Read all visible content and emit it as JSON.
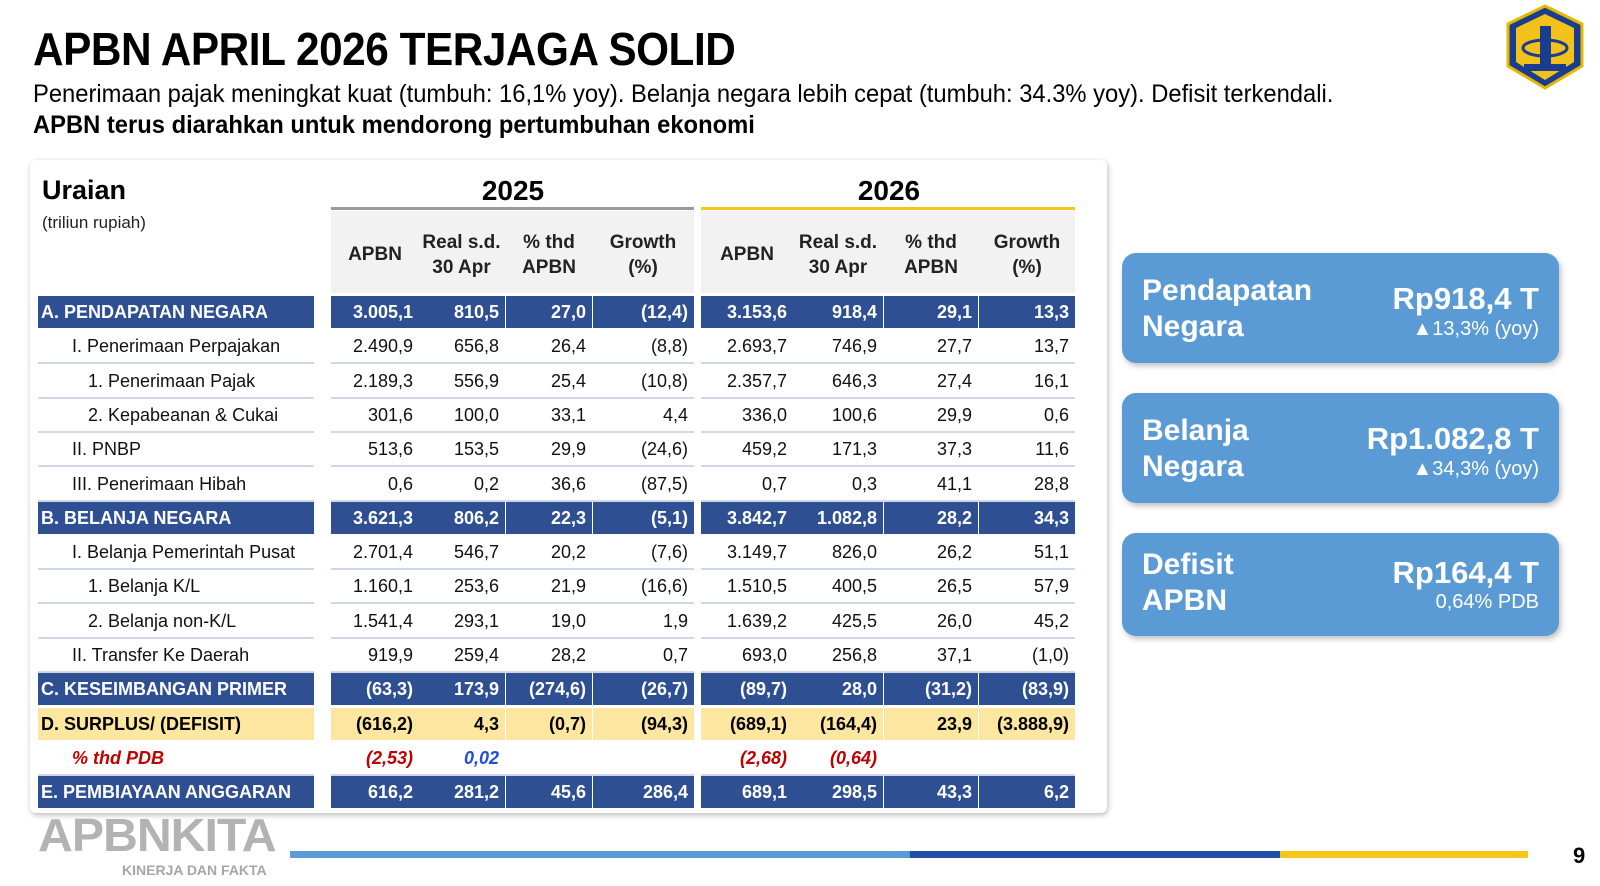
{
  "header": {
    "title": "APBN APRIL 2026 TERJAGA SOLID",
    "subtitle": "Penerimaan pajak meningkat kuat (tumbuh: 16,1% yoy). Belanja negara lebih cepat (tumbuh: 34.3% yoy). Defisit terkendali.",
    "subtitle_bold": "APBN terus diarahkan untuk mendorong pertumbuhan ekonomi"
  },
  "table": {
    "uraian_label": "Uraian",
    "unit_label": "(triliun rupiah)",
    "years": [
      "2025",
      "2026"
    ],
    "column_headers": [
      [
        "APBN"
      ],
      [
        "Real s.d.",
        "30 Apr"
      ],
      [
        "% thd",
        "APBN"
      ],
      [
        "Growth",
        "(%)"
      ],
      [
        "APBN"
      ],
      [
        "Real s.d.",
        "30 Apr"
      ],
      [
        "% thd",
        "APBN"
      ],
      [
        "Growth",
        "(%)"
      ]
    ],
    "rows": [
      {
        "label": "A. PENDAPATAN NEGARA",
        "style": "section",
        "indent": 0,
        "values": [
          "3.005,1",
          "810,5",
          "27,0",
          "(12,4)",
          "3.153,6",
          "918,4",
          "29,1",
          "13,3"
        ]
      },
      {
        "label": "I. Penerimaan Perpajakan",
        "style": "normal",
        "indent": 1,
        "values": [
          "2.490,9",
          "656,8",
          "26,4",
          "(8,8)",
          "2.693,7",
          "746,9",
          "27,7",
          "13,7"
        ]
      },
      {
        "label": "1.  Penerimaan Pajak",
        "style": "normal",
        "indent": 2,
        "values": [
          "2.189,3",
          "556,9",
          "25,4",
          "(10,8)",
          "2.357,7",
          "646,3",
          "27,4",
          "16,1"
        ]
      },
      {
        "label": "2.  Kepabeanan & Cukai",
        "style": "normal",
        "indent": 2,
        "values": [
          "301,6",
          "100,0",
          "33,1",
          "4,4",
          "336,0",
          "100,6",
          "29,9",
          "0,6"
        ]
      },
      {
        "label": "II. PNBP",
        "style": "normal",
        "indent": 1,
        "values": [
          "513,6",
          "153,5",
          "29,9",
          "(24,6)",
          "459,2",
          "171,3",
          "37,3",
          "11,6"
        ]
      },
      {
        "label": "III. Penerimaan Hibah",
        "style": "normal",
        "indent": 1,
        "values": [
          "0,6",
          "0,2",
          "36,6",
          "(87,5)",
          "0,7",
          "0,3",
          "41,1",
          "28,8"
        ]
      },
      {
        "label": "B. BELANJA NEGARA",
        "style": "section",
        "indent": 0,
        "values": [
          "3.621,3",
          "806,2",
          "22,3",
          "(5,1)",
          "3.842,7",
          "1.082,8",
          "28,2",
          "34,3"
        ]
      },
      {
        "label": "I. Belanja Pemerintah Pusat",
        "style": "normal",
        "indent": 1,
        "values": [
          "2.701,4",
          "546,7",
          "20,2",
          "(7,6)",
          "3.149,7",
          "826,0",
          "26,2",
          "51,1"
        ]
      },
      {
        "label": "1.  Belanja K/L",
        "style": "normal",
        "indent": 2,
        "values": [
          "1.160,1",
          "253,6",
          "21,9",
          "(16,6)",
          "1.510,5",
          "400,5",
          "26,5",
          "57,9"
        ]
      },
      {
        "label": "2.  Belanja non-K/L",
        "style": "normal",
        "indent": 2,
        "values": [
          "1.541,4",
          "293,1",
          "19,0",
          "1,9",
          "1.639,2",
          "425,5",
          "26,0",
          "45,2"
        ]
      },
      {
        "label": "II. Transfer Ke Daerah",
        "style": "normal",
        "indent": 1,
        "values": [
          "919,9",
          "259,4",
          "28,2",
          "0,7",
          "693,0",
          "256,8",
          "37,1",
          "(1,0)"
        ]
      },
      {
        "label": "C. KESEIMBANGAN PRIMER",
        "style": "section",
        "indent": 0,
        "values": [
          "(63,3)",
          "173,9",
          "(274,6)",
          "(26,7)",
          "(89,7)",
          "28,0",
          "(31,2)",
          "(83,9)"
        ]
      },
      {
        "label": "D. SURPLUS/ (DEFISIT)",
        "style": "highlight",
        "indent": 0,
        "values": [
          "(616,2)",
          "4,3",
          "(0,7)",
          "(94,3)",
          "(689,1)",
          "(164,4)",
          "23,9",
          "(3.888,9)"
        ]
      },
      {
        "label": "% thd PDB",
        "style": "pdb",
        "indent": 1,
        "values": [
          "(2,53)",
          "0,02",
          "",
          "",
          "(2,68)",
          "(0,64)",
          "",
          ""
        ]
      },
      {
        "label": "E. PEMBIAYAAN ANGGARAN",
        "style": "section",
        "indent": 0,
        "values": [
          "616,2",
          "281,2",
          "45,6",
          "286,4",
          "689,1",
          "298,5",
          "43,3",
          "6,2"
        ]
      }
    ]
  },
  "kpis": [
    {
      "label_line1": "Pendapatan",
      "label_line2": "Negara",
      "value": "Rp918,4 T",
      "sub": "▲13,3% (yoy)"
    },
    {
      "label_line1": "Belanja",
      "label_line2": "Negara",
      "value": "Rp1.082,8 T",
      "sub": "▲34,3% (yoy)"
    },
    {
      "label_line1": "Defisit",
      "label_line2": "APBN",
      "value": "Rp164,4 T",
      "sub": "0,64% PDB"
    }
  ],
  "footer": {
    "brand": "APBNKITA",
    "tagline": "KINERJA DAN FAKTA",
    "page_number": "9"
  },
  "colors": {
    "section_blue": "#2f4f93",
    "highlight_yellow": "#fde7a0",
    "kpi_blue": "#5b9bd5",
    "year_2026_line": "#f5c518",
    "pdb_red": "#c00000",
    "pdb_blue": "#1f4fd8"
  }
}
